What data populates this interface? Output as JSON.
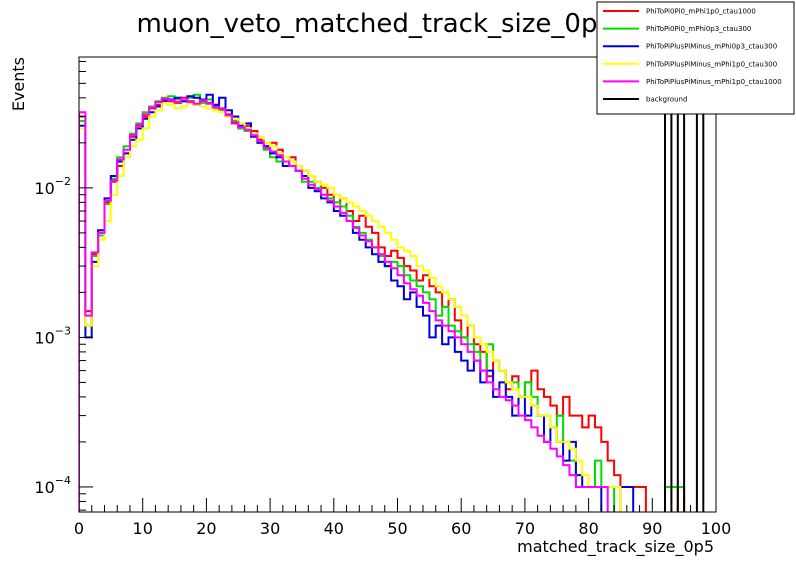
{
  "chart_data": {
    "type": "step-histogram",
    "title": "muon_veto_matched_track_size_0p5_0",
    "xlabel": "matched_track_size_0p5",
    "ylabel": "Events",
    "xlim": [
      0,
      100
    ],
    "ylim": [
      6.8e-05,
      0.075
    ],
    "yscale": "log",
    "x_ticks": [
      "0",
      "10",
      "20",
      "30",
      "40",
      "50",
      "60",
      "70",
      "80",
      "90",
      "100"
    ],
    "y_ticks": [
      {
        "value": 0.01,
        "base": "10",
        "exp": "−2"
      },
      {
        "value": 0.001,
        "base": "10",
        "exp": "−3"
      },
      {
        "value": 0.0001,
        "base": "10",
        "exp": "−4"
      }
    ],
    "legend_position": "top-right",
    "series": [
      {
        "name": "PhiToPi0Pi0_mPhi1p0_ctau1000",
        "color": "#ff0000",
        "values": [
          0.03,
          0.0015,
          0.0036,
          0.005,
          0.008,
          0.011,
          0.014,
          0.017,
          0.022,
          0.026,
          0.03,
          0.034,
          0.036,
          0.039,
          0.038,
          0.037,
          0.04,
          0.038,
          0.036,
          0.038,
          0.037,
          0.035,
          0.034,
          0.031,
          0.027,
          0.025,
          0.026,
          0.024,
          0.021,
          0.019,
          0.02,
          0.018,
          0.015,
          0.016,
          0.014,
          0.013,
          0.012,
          0.011,
          0.01,
          0.009,
          0.008,
          0.0085,
          0.007,
          0.006,
          0.0065,
          0.0055,
          0.005,
          0.004,
          0.0035,
          0.0038,
          0.0034,
          0.003,
          0.0028,
          0.0024,
          0.0026,
          0.0022,
          0.002,
          0.0016,
          0.0018,
          0.0013,
          0.001,
          0.0012,
          0.0009,
          0.0008,
          0.00055,
          0.0007,
          0.0006,
          0.00045,
          0.00055,
          0.0004,
          0.0005,
          0.0006,
          0.00045,
          0.0004,
          0.00035,
          0.0003,
          0.0004,
          0.0003,
          0.0003,
          0.00025,
          0.0003,
          0.00025,
          0.0002,
          0.00015,
          0.00012,
          0.0001,
          0.0001,
          0.0001,
          0.0001,
          0.0,
          0.0,
          0.0,
          0.0,
          0.0,
          0.0001,
          0.0,
          0.0,
          0.0,
          0.0,
          0.0
        ]
      },
      {
        "name": "PhiToPi0Pi0_mPhi0p3_ctau300",
        "color": "#00dd00",
        "values": [
          0.028,
          0.0012,
          0.0035,
          0.0048,
          0.0078,
          0.0115,
          0.016,
          0.019,
          0.023,
          0.027,
          0.032,
          0.035,
          0.038,
          0.04,
          0.041,
          0.039,
          0.038,
          0.04,
          0.042,
          0.037,
          0.039,
          0.034,
          0.033,
          0.03,
          0.028,
          0.025,
          0.024,
          0.023,
          0.02,
          0.018,
          0.016,
          0.015,
          0.015,
          0.014,
          0.013,
          0.011,
          0.011,
          0.01,
          0.009,
          0.0085,
          0.008,
          0.0075,
          0.0065,
          0.0055,
          0.005,
          0.0045,
          0.004,
          0.0035,
          0.003,
          0.0032,
          0.003,
          0.0026,
          0.0024,
          0.0022,
          0.002,
          0.0018,
          0.0014,
          0.0016,
          0.0012,
          0.0011,
          0.001,
          0.0009,
          0.0008,
          0.0006,
          0.0009,
          0.0007,
          0.0006,
          0.0005,
          0.0005,
          0.0004,
          0.0005,
          0.0004,
          0.0003,
          0.0003,
          0.00025,
          0.0003,
          0.0002,
          0.00015,
          0.0001,
          0.0001,
          0.0001,
          0.00015,
          0.0001,
          0.0001,
          0.0,
          0.0,
          0.0,
          0.0,
          0.0,
          0.0,
          0.0,
          0.0,
          0.0001,
          0.0001,
          0.0001,
          0.0,
          0.0,
          0.0,
          0.0,
          0.0
        ]
      },
      {
        "name": "PhiToPiPlusPiMinus_mPhi0p3_ctau300",
        "color": "#0000dd",
        "values": [
          0.026,
          0.001,
          0.0032,
          0.0052,
          0.0085,
          0.012,
          0.015,
          0.017,
          0.021,
          0.025,
          0.029,
          0.032,
          0.035,
          0.038,
          0.039,
          0.04,
          0.038,
          0.041,
          0.04,
          0.039,
          0.042,
          0.036,
          0.04,
          0.033,
          0.03,
          0.026,
          0.027,
          0.022,
          0.02,
          0.019,
          0.017,
          0.016,
          0.014,
          0.015,
          0.013,
          0.012,
          0.01,
          0.0095,
          0.0085,
          0.008,
          0.007,
          0.0065,
          0.006,
          0.005,
          0.0045,
          0.004,
          0.0036,
          0.0032,
          0.003,
          0.0024,
          0.0022,
          0.0018,
          0.002,
          0.0016,
          0.0014,
          0.001,
          0.0012,
          0.0009,
          0.001,
          0.0008,
          0.0007,
          0.0006,
          0.0007,
          0.0005,
          0.0006,
          0.0004,
          0.0005,
          0.0004,
          0.0003,
          0.0004,
          0.0003,
          0.00035,
          0.0003,
          0.0002,
          0.00025,
          0.0002,
          0.00015,
          0.0002,
          0.00012,
          0.0001,
          0.0001,
          0.0001,
          0.0,
          0.0,
          0.0,
          0.0001,
          0.0001,
          0.0,
          0.0,
          0.0,
          0.0,
          0.0,
          0.0,
          0.0,
          0.0,
          0.0,
          0.0,
          0.0,
          0.0,
          0.0
        ]
      },
      {
        "name": "PhiToPiPlusPiMinus_mPhi1p0_ctau300",
        "color": "#ffff00",
        "values": [
          0.025,
          0.0012,
          0.003,
          0.0045,
          0.006,
          0.009,
          0.012,
          0.016,
          0.019,
          0.021,
          0.025,
          0.03,
          0.033,
          0.037,
          0.036,
          0.034,
          0.035,
          0.037,
          0.036,
          0.035,
          0.034,
          0.033,
          0.032,
          0.03,
          0.029,
          0.027,
          0.025,
          0.023,
          0.022,
          0.02,
          0.019,
          0.017,
          0.016,
          0.015,
          0.014,
          0.013,
          0.012,
          0.011,
          0.0105,
          0.01,
          0.009,
          0.0085,
          0.008,
          0.0075,
          0.007,
          0.0065,
          0.006,
          0.0055,
          0.005,
          0.0045,
          0.004,
          0.0038,
          0.0035,
          0.003,
          0.0028,
          0.0025,
          0.0022,
          0.002,
          0.0018,
          0.0016,
          0.0014,
          0.0012,
          0.001,
          0.0009,
          0.0008,
          0.0007,
          0.0006,
          0.0005,
          0.00045,
          0.0004,
          0.0004,
          0.00035,
          0.0003,
          0.0003,
          0.00025,
          0.0002,
          0.0002,
          0.00018,
          0.00015,
          0.00012,
          0.0001,
          0.0001,
          0.0001,
          0.0001,
          0.0001,
          0.0,
          0.0,
          0.0,
          0.0,
          0.0,
          0.0,
          0.0,
          0.0,
          0.0,
          0.0,
          0.0,
          0.0,
          0.0,
          0.0,
          0.0
        ]
      },
      {
        "name": "PhiToPiPlusPiMinus_mPhi1p0_ctau1000",
        "color": "#ff00ff",
        "values": [
          0.032,
          0.0014,
          0.0037,
          0.005,
          0.0082,
          0.0112,
          0.0155,
          0.018,
          0.0225,
          0.0265,
          0.031,
          0.0345,
          0.0375,
          0.0395,
          0.0385,
          0.0375,
          0.0395,
          0.0375,
          0.0365,
          0.0385,
          0.0365,
          0.0345,
          0.0335,
          0.0305,
          0.0275,
          0.0255,
          0.0245,
          0.0225,
          0.0205,
          0.0185,
          0.0175,
          0.0165,
          0.015,
          0.014,
          0.013,
          0.0115,
          0.0105,
          0.0098,
          0.009,
          0.0082,
          0.0075,
          0.0068,
          0.006,
          0.0054,
          0.0048,
          0.0044,
          0.004,
          0.0036,
          0.0032,
          0.0029,
          0.0026,
          0.0023,
          0.0021,
          0.0019,
          0.0017,
          0.0015,
          0.0013,
          0.0012,
          0.0011,
          0.001,
          0.0009,
          0.0008,
          0.0007,
          0.0006,
          0.0005,
          0.00045,
          0.0004,
          0.00038,
          0.00035,
          0.0003,
          0.00028,
          0.00025,
          0.00022,
          0.0002,
          0.00018,
          0.00016,
          0.00014,
          0.00012,
          0.0001,
          0.0001,
          0.0001,
          0.0001,
          0.0001,
          0.0,
          0.0,
          0.0,
          0.0,
          0.0,
          0.0,
          0.0,
          0.0,
          0.0,
          0.0,
          0.0,
          0.0,
          0.0,
          0.0,
          0.0,
          0.0,
          0.0
        ]
      },
      {
        "name": "background",
        "color": "#000000",
        "values": [
          0.0,
          0.0,
          0.0,
          0.0,
          0.0,
          0.0,
          0.0,
          0.0,
          0.0,
          0.0,
          0.0,
          0.0,
          0.0,
          0.0,
          0.0,
          0.0,
          0.0,
          0.0,
          0.0,
          0.0,
          0.0,
          0.0,
          0.0,
          0.0,
          0.0,
          0.0,
          0.0,
          0.0,
          0.0,
          0.0,
          0.0,
          0.0,
          0.0,
          0.0,
          0.0,
          0.0,
          0.0,
          0.0,
          0.0,
          0.0,
          0.0,
          0.0,
          0.0,
          0.0,
          0.0,
          0.0,
          0.0,
          0.0,
          0.0,
          0.0,
          0.0,
          0.0,
          0.0,
          0.0,
          0.0,
          0.0,
          0.0,
          0.0,
          0.0,
          0.0,
          0.0,
          0.0,
          0.0,
          0.0,
          0.0,
          0.0,
          0.0,
          0.0,
          0.0,
          0.0,
          0.0,
          0.0,
          0.0,
          0.0,
          0.0,
          0.0,
          0.0,
          0.0,
          0.0,
          0.0,
          0.0,
          0.0,
          0.0,
          0.0,
          0.0,
          0.0,
          0.0,
          0.0,
          0.0,
          0.0,
          0.0,
          0.0,
          1.0,
          0.0,
          1.0,
          0.0,
          0.0,
          1.0,
          0.0,
          0.0
        ]
      }
    ]
  }
}
